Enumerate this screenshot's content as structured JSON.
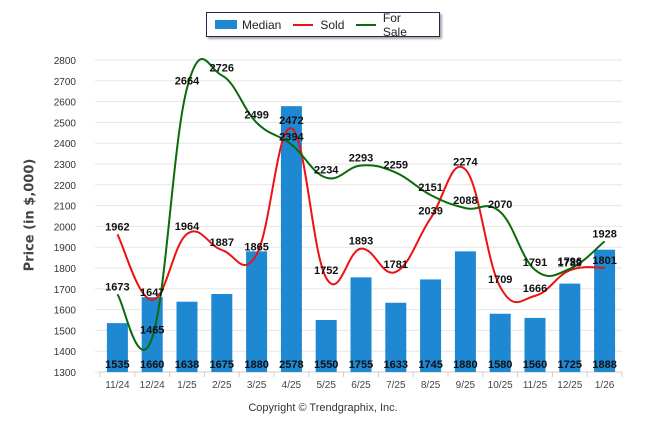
{
  "chart_data": {
    "type": "bar",
    "title": "",
    "xlabel": "",
    "ylabel": "Price (in $,000)",
    "ylim": [
      1300,
      2800
    ],
    "yticks": [
      1300,
      1400,
      1500,
      1600,
      1700,
      1800,
      1900,
      2000,
      2100,
      2200,
      2300,
      2400,
      2500,
      2600,
      2700,
      2800
    ],
    "grid": true,
    "legend_position": "top-center",
    "categories": [
      "11/24",
      "12/24",
      "1/25",
      "2/25",
      "3/25",
      "4/25",
      "5/25",
      "6/25",
      "7/25",
      "8/25",
      "9/25",
      "10/25",
      "11/25",
      "12/25",
      "1/26"
    ],
    "series": [
      {
        "name": "Median",
        "kind": "bar",
        "color": "#1e88d2",
        "values": [
          1535,
          1660,
          1638,
          1675,
          1880,
          2578,
          1550,
          1755,
          1633,
          1745,
          1880,
          1580,
          1560,
          1725,
          1888
        ]
      },
      {
        "name": "Sold",
        "kind": "line",
        "color": "#ee1111",
        "values": [
          1962,
          1647,
          1964,
          1887,
          1865,
          2472,
          1752,
          1893,
          1781,
          2039,
          2274,
          1709,
          1666,
          1789,
          1801
        ]
      },
      {
        "name": "For Sale",
        "kind": "line",
        "color": "#0b6b0b",
        "values": [
          1673,
          1465,
          2664,
          2726,
          2499,
          2394,
          2234,
          2293,
          2259,
          2151,
          2088,
          2070,
          1791,
          1796,
          1928
        ]
      }
    ]
  },
  "legend": {
    "items": [
      {
        "label": "Median",
        "color": "#1e88d2",
        "kind": "bar"
      },
      {
        "label": "Sold",
        "color": "#ee1111",
        "kind": "line"
      },
      {
        "label": "For Sale",
        "color": "#0b6b0b",
        "kind": "line"
      }
    ]
  },
  "footer": {
    "copyright": "Copyright © Trendgraphix, Inc."
  }
}
